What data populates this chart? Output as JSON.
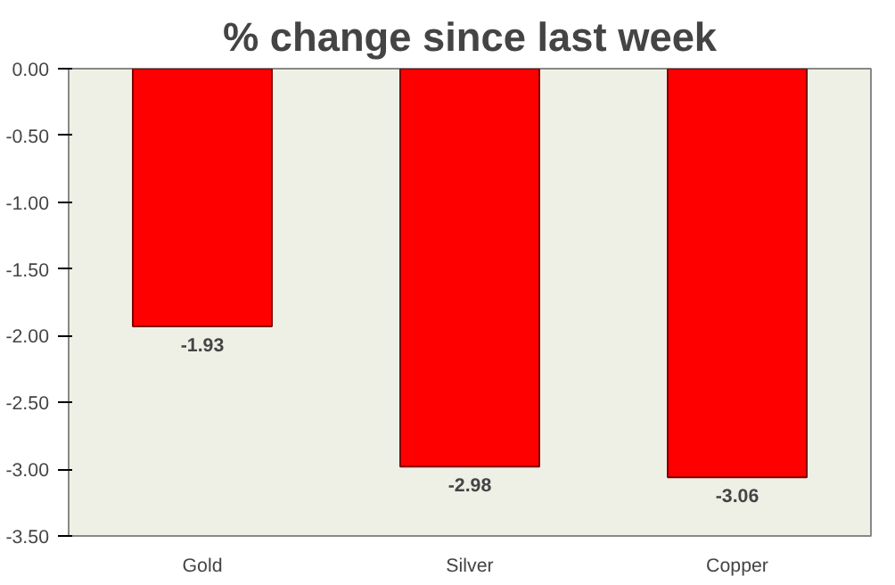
{
  "chart_data": {
    "type": "bar",
    "title": "% change since last week",
    "categories": [
      "Gold",
      "Silver",
      "Copper"
    ],
    "values": [
      -1.93,
      -2.98,
      -3.06
    ],
    "color": "#ff0000",
    "ylim": [
      -3.5,
      0
    ],
    "yticks": [
      {
        "value": 0,
        "label": "0.00"
      },
      {
        "value": -0.5,
        "label": "-0.50"
      },
      {
        "value": -1,
        "label": "-1.00"
      },
      {
        "value": -1.5,
        "label": "-1.50"
      },
      {
        "value": -2,
        "label": "-2.00"
      },
      {
        "value": -2.5,
        "label": "-2.50"
      },
      {
        "value": -3,
        "label": "-3.00"
      },
      {
        "value": -3.5,
        "label": "-3.50"
      }
    ],
    "grid": false,
    "data_labels": true
  }
}
